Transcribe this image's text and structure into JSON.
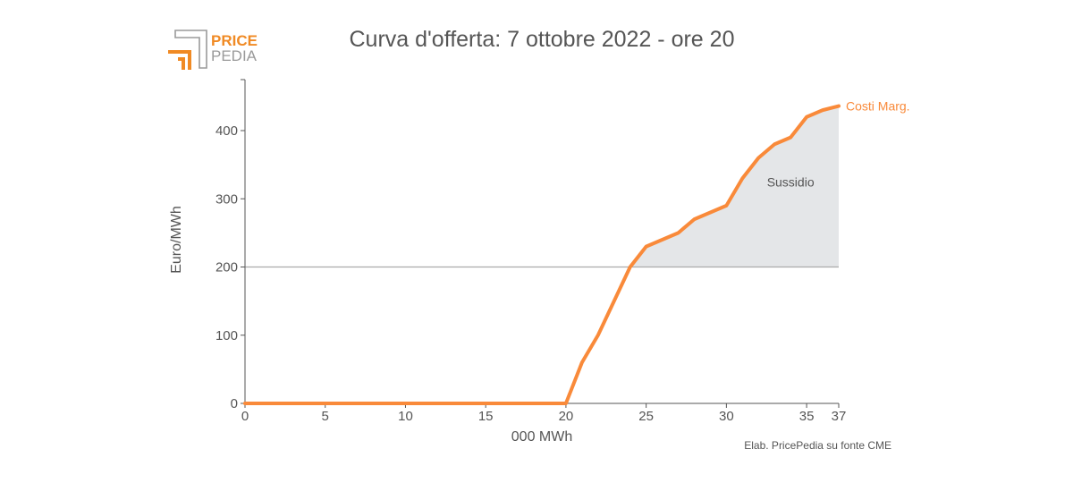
{
  "logo": {
    "word1": "PRICE",
    "word2": "PEDIA",
    "accent_color": "#f08a24",
    "secondary_color": "#9a9a9a"
  },
  "chart_data": {
    "type": "area",
    "title": "Curva d'offerta: 7 ottobre 2022 - ore 20",
    "xlabel": "000 MWh",
    "ylabel": "Euro/MWh",
    "xlim": [
      0,
      37
    ],
    "ylim": [
      0,
      460
    ],
    "x_ticks": [
      0,
      5,
      10,
      15,
      20,
      25,
      30,
      35,
      37
    ],
    "y_ticks": [
      0,
      100,
      200,
      300,
      400
    ],
    "grid": false,
    "series": [
      {
        "name": "Costi Marg.",
        "color": "#f98a3a",
        "x": [
          0,
          20,
          21,
          22,
          23,
          24,
          25,
          26,
          27,
          28,
          29,
          30,
          31,
          32,
          33,
          34,
          35,
          36,
          37
        ],
        "y": [
          0,
          0,
          60,
          100,
          150,
          200,
          230,
          240,
          250,
          270,
          280,
          290,
          330,
          360,
          380,
          390,
          420,
          430,
          436
        ]
      }
    ],
    "reference_line": {
      "y": 200,
      "color": "#aaaaaa"
    },
    "shaded_area": {
      "label": "Sussidio",
      "from_y": 200,
      "color": "#e4e6e8",
      "label_at": {
        "x": 34,
        "y": 318
      }
    },
    "source": "Elab. PricePedia su fonte CME"
  }
}
